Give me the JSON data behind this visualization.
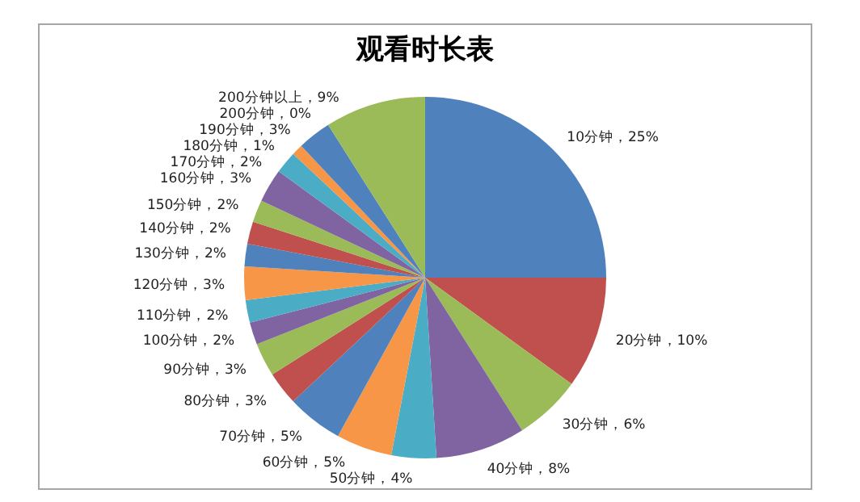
{
  "chart_data": {
    "type": "pie",
    "title": "观看时长表",
    "value_labels": [
      "，25%",
      "，10%",
      "，6%",
      "，8%",
      "，4%",
      "，5%",
      "，5%",
      "，3%",
      "，3%",
      "，2%",
      "，2%",
      "，3%",
      "，2%",
      "，2%",
      "，2%",
      "，3%",
      "，2%",
      "，1%",
      "，3%",
      "，0%",
      "，9%"
    ],
    "categories": [
      "10分钟",
      "20分钟",
      "30分钟",
      "40分钟",
      "50分钟",
      "60分钟",
      "70分钟",
      "80分钟",
      "90分钟",
      "100分钟",
      "110分钟",
      "120分钟",
      "130分钟",
      "140分钟",
      "150分钟",
      "160分钟",
      "170分钟",
      "180分钟",
      "190分钟",
      "200分钟",
      "200分钟以上"
    ],
    "values": [
      25,
      10,
      6,
      8,
      4,
      5,
      5,
      3,
      3,
      2,
      2,
      3,
      2,
      2,
      2,
      3,
      2,
      1,
      3,
      0,
      9
    ],
    "colors": [
      "#4f81bd",
      "#c0504d",
      "#9bbb59",
      "#8064a2",
      "#4bacc6",
      "#f79646",
      "#4f81bd",
      "#c0504d",
      "#9bbb59",
      "#8064a2",
      "#4bacc6",
      "#f79646",
      "#4f81bd",
      "#c0504d",
      "#9bbb59",
      "#8064a2",
      "#4bacc6",
      "#f79646",
      "#4f81bd",
      "#c0504d",
      "#9bbb59"
    ]
  }
}
